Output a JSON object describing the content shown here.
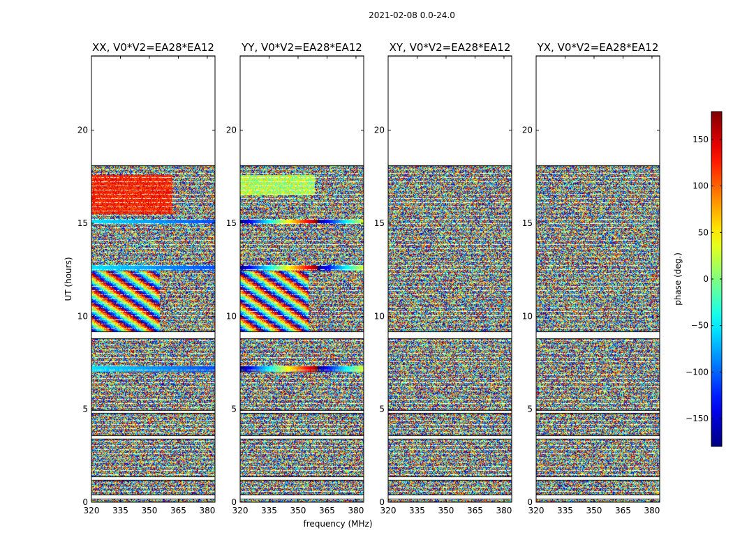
{
  "chart_data": {
    "type": "heatmap",
    "suptitle": "2021-02-08 0.0-24.0",
    "xlabel": "frequency (MHz)",
    "ylabel": "UT (hours)",
    "xlim": [
      320,
      384
    ],
    "ylim": [
      0,
      24
    ],
    "xticks": [
      320,
      335,
      350,
      365,
      380
    ],
    "yticks": [
      0,
      5,
      10,
      15,
      20
    ],
    "data_extent_hours": [
      0.0,
      18.1
    ],
    "panels": [
      {
        "title": "XX, V0*V2=EA28*EA12",
        "pol": "XX"
      },
      {
        "title": "YY, V0*V2=EA28*EA12",
        "pol": "YY"
      },
      {
        "title": "XY, V0*V2=EA28*EA12",
        "pol": "XY"
      },
      {
        "title": "YX, V0*V2=EA28*EA12",
        "pol": "YX"
      }
    ],
    "colorbar": {
      "label": "phase (deg.)",
      "vmin": -180,
      "vmax": 180,
      "ticks": [
        -150,
        -100,
        -50,
        0,
        50,
        100,
        150
      ],
      "colormap": "jet"
    },
    "gap_bands_hours": [
      [
        0.2,
        0.4
      ],
      [
        1.2,
        1.4
      ],
      [
        3.4,
        3.6
      ],
      [
        4.8,
        4.95
      ],
      [
        8.8,
        9.2
      ],
      [
        18.1,
        24.0
      ]
    ],
    "smooth_bands_hours": [
      [
        12.45,
        12.75
      ],
      [
        14.95,
        15.2
      ],
      [
        7.0,
        7.3
      ]
    ],
    "stripe_region_hours": [
      9.2,
      12.4
    ]
  }
}
